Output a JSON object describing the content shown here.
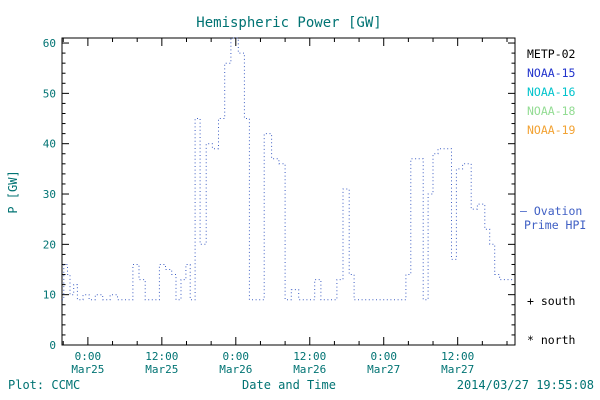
{
  "colors": {
    "teal": "#007373",
    "axis_black": "#000000",
    "ovation_blue": "#3f5fc4"
  },
  "footer": {
    "left": "Plot: CCMC",
    "right": "2014/03/27 19:55:08"
  },
  "legend": {
    "satellites": [
      {
        "label": "METP-02",
        "color": "#000000"
      },
      {
        "label": "NOAA-15",
        "color": "#2233cc"
      },
      {
        "label": "NOAA-16",
        "color": "#00c3cc"
      },
      {
        "label": "NOAA-18",
        "color": "#93dc93"
      },
      {
        "label": "NOAA-19",
        "color": "#f2a233"
      }
    ],
    "ovation_line1": "– Ovation",
    "ovation_line2": "Prime HPI",
    "south": "+ south",
    "north": "* north"
  },
  "chart_data": {
    "type": "line",
    "title": "Hemispheric Power [GW]",
    "xlabel": "Date and Time",
    "ylabel": "P [GW]",
    "line_style": "dotted-step",
    "grid": false,
    "ylim": [
      0,
      61
    ],
    "yticks": [
      0,
      10,
      20,
      30,
      40,
      50,
      60
    ],
    "xlim_hours": [
      -4.2,
      69.3
    ],
    "x_hours_origin": "Mar25 00:00",
    "xticks": [
      {
        "t": 0,
        "time": "0:00",
        "date": "Mar25"
      },
      {
        "t": 12,
        "time": "12:00",
        "date": "Mar25"
      },
      {
        "t": 24,
        "time": "0:00",
        "date": "Mar26"
      },
      {
        "t": 36,
        "time": "12:00",
        "date": "Mar26"
      },
      {
        "t": 48,
        "time": "0:00",
        "date": "Mar27"
      },
      {
        "t": 60,
        "time": "12:00",
        "date": "Mar27"
      }
    ],
    "series": [
      {
        "name": "Ovation Prime HPI",
        "color": "#3f5fc4",
        "points": [
          [
            -4.2,
            9
          ],
          [
            -3.9,
            16
          ],
          [
            -3.3,
            14
          ],
          [
            -2.9,
            10
          ],
          [
            -2.3,
            12
          ],
          [
            -1.7,
            9
          ],
          [
            -0.8,
            10
          ],
          [
            0.2,
            9
          ],
          [
            1.2,
            10
          ],
          [
            2.4,
            9
          ],
          [
            3.6,
            10
          ],
          [
            4.8,
            9
          ],
          [
            6.0,
            9
          ],
          [
            7.3,
            16
          ],
          [
            8.3,
            13
          ],
          [
            9.3,
            9
          ],
          [
            10.6,
            9
          ],
          [
            11.6,
            16
          ],
          [
            12.6,
            15
          ],
          [
            13.6,
            14
          ],
          [
            14.3,
            9
          ],
          [
            15.1,
            13
          ],
          [
            15.9,
            16
          ],
          [
            16.6,
            9
          ],
          [
            17.4,
            45
          ],
          [
            18.2,
            20
          ],
          [
            19.2,
            40
          ],
          [
            20.2,
            39
          ],
          [
            21.2,
            45
          ],
          [
            22.2,
            56
          ],
          [
            23.2,
            61
          ],
          [
            24.4,
            58
          ],
          [
            25.4,
            45
          ],
          [
            26.2,
            9
          ],
          [
            27.4,
            9
          ],
          [
            28.6,
            42
          ],
          [
            29.8,
            37
          ],
          [
            31.0,
            36
          ],
          [
            32.0,
            9
          ],
          [
            33.0,
            11
          ],
          [
            34.2,
            9
          ],
          [
            35.6,
            9
          ],
          [
            36.8,
            13
          ],
          [
            37.8,
            9
          ],
          [
            39.2,
            9
          ],
          [
            40.4,
            13
          ],
          [
            41.4,
            31
          ],
          [
            42.4,
            14
          ],
          [
            43.2,
            9
          ],
          [
            45.4,
            9
          ],
          [
            47.8,
            9
          ],
          [
            50.2,
            9
          ],
          [
            51.6,
            14
          ],
          [
            52.4,
            37
          ],
          [
            54.4,
            9
          ],
          [
            55.2,
            30
          ],
          [
            56.0,
            38
          ],
          [
            56.8,
            39
          ],
          [
            58.0,
            39
          ],
          [
            59.0,
            17
          ],
          [
            59.8,
            35
          ],
          [
            60.8,
            36
          ],
          [
            62.2,
            27
          ],
          [
            63.2,
            28
          ],
          [
            64.4,
            23
          ],
          [
            65.2,
            20
          ],
          [
            66.0,
            14
          ],
          [
            66.8,
            13
          ],
          [
            69.0,
            13
          ]
        ]
      }
    ]
  }
}
